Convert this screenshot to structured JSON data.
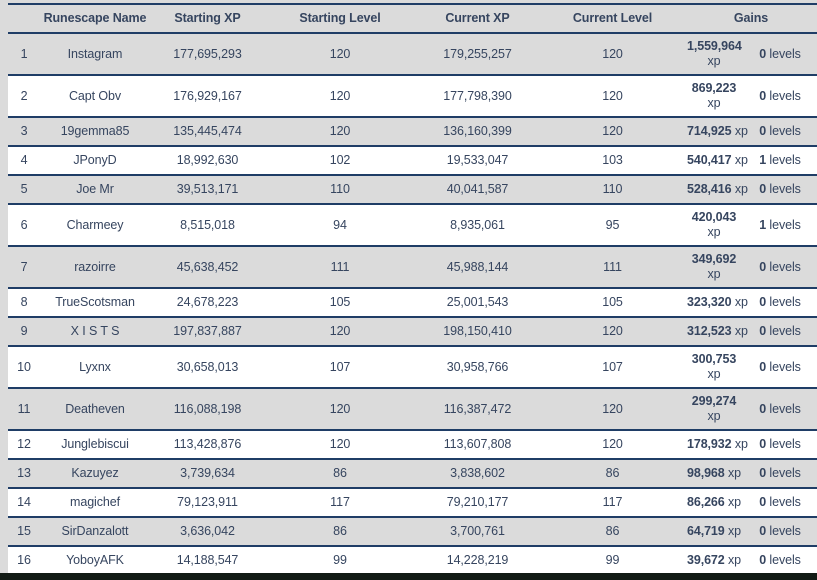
{
  "colors": {
    "page_background": "#dbdbdb",
    "row_alt_background": "#ffffff",
    "divider_navy": "#1f3d66",
    "text_navy": "#36455f",
    "bottom_bar": "#121b15"
  },
  "table": {
    "columns": [
      {
        "key": "rank",
        "label": ""
      },
      {
        "key": "name",
        "label": "Runescape Name"
      },
      {
        "key": "starting_xp",
        "label": "Starting XP"
      },
      {
        "key": "starting_level",
        "label": "Starting Level"
      },
      {
        "key": "current_xp",
        "label": "Current XP"
      },
      {
        "key": "current_level",
        "label": "Current Level"
      },
      {
        "key": "gains",
        "label": "Gains"
      }
    ],
    "rows": [
      {
        "rank": "1",
        "name": "Instagram",
        "starting_xp": "177,695,293",
        "starting_level": "120",
        "current_xp": "179,255,257",
        "current_level": "120",
        "gains_xp_value": "1,559,964",
        "gains_xp_unit": "xp",
        "gains_xp_wrap": true,
        "gains_levels_value": "0",
        "gains_levels_unit": "levels"
      },
      {
        "rank": "2",
        "name": "Capt Obv",
        "starting_xp": "176,929,167",
        "starting_level": "120",
        "current_xp": "177,798,390",
        "current_level": "120",
        "gains_xp_value": "869,223",
        "gains_xp_unit": "xp",
        "gains_xp_wrap": true,
        "gains_levels_value": "0",
        "gains_levels_unit": "levels"
      },
      {
        "rank": "3",
        "name": "19gemma85",
        "starting_xp": "135,445,474",
        "starting_level": "120",
        "current_xp": "136,160,399",
        "current_level": "120",
        "gains_xp_value": "714,925",
        "gains_xp_unit": "xp",
        "gains_xp_wrap": false,
        "gains_levels_value": "0",
        "gains_levels_unit": "levels"
      },
      {
        "rank": "4",
        "name": "JPonyD",
        "starting_xp": "18,992,630",
        "starting_level": "102",
        "current_xp": "19,533,047",
        "current_level": "103",
        "gains_xp_value": "540,417",
        "gains_xp_unit": "xp",
        "gains_xp_wrap": false,
        "gains_levels_value": "1",
        "gains_levels_unit": "levels"
      },
      {
        "rank": "5",
        "name": "Joe Mr",
        "starting_xp": "39,513,171",
        "starting_level": "110",
        "current_xp": "40,041,587",
        "current_level": "110",
        "gains_xp_value": "528,416",
        "gains_xp_unit": "xp",
        "gains_xp_wrap": false,
        "gains_levels_value": "0",
        "gains_levels_unit": "levels"
      },
      {
        "rank": "6",
        "name": "Charmeey",
        "starting_xp": "8,515,018",
        "starting_level": "94",
        "current_xp": "8,935,061",
        "current_level": "95",
        "gains_xp_value": "420,043",
        "gains_xp_unit": "xp",
        "gains_xp_wrap": true,
        "gains_levels_value": "1",
        "gains_levels_unit": "levels"
      },
      {
        "rank": "7",
        "name": "razoirre",
        "starting_xp": "45,638,452",
        "starting_level": "111",
        "current_xp": "45,988,144",
        "current_level": "111",
        "gains_xp_value": "349,692",
        "gains_xp_unit": "xp",
        "gains_xp_wrap": true,
        "gains_levels_value": "0",
        "gains_levels_unit": "levels"
      },
      {
        "rank": "8",
        "name": "TrueScotsman",
        "starting_xp": "24,678,223",
        "starting_level": "105",
        "current_xp": "25,001,543",
        "current_level": "105",
        "gains_xp_value": "323,320",
        "gains_xp_unit": "xp",
        "gains_xp_wrap": false,
        "gains_levels_value": "0",
        "gains_levels_unit": "levels"
      },
      {
        "rank": "9",
        "name": "X I S T S",
        "starting_xp": "197,837,887",
        "starting_level": "120",
        "current_xp": "198,150,410",
        "current_level": "120",
        "gains_xp_value": "312,523",
        "gains_xp_unit": "xp",
        "gains_xp_wrap": false,
        "gains_levels_value": "0",
        "gains_levels_unit": "levels"
      },
      {
        "rank": "10",
        "name": "Lyxnx",
        "starting_xp": "30,658,013",
        "starting_level": "107",
        "current_xp": "30,958,766",
        "current_level": "107",
        "gains_xp_value": "300,753",
        "gains_xp_unit": "xp",
        "gains_xp_wrap": true,
        "gains_levels_value": "0",
        "gains_levels_unit": "levels"
      },
      {
        "rank": "11",
        "name": "Deatheven",
        "starting_xp": "116,088,198",
        "starting_level": "120",
        "current_xp": "116,387,472",
        "current_level": "120",
        "gains_xp_value": "299,274",
        "gains_xp_unit": "xp",
        "gains_xp_wrap": true,
        "gains_levels_value": "0",
        "gains_levels_unit": "levels"
      },
      {
        "rank": "12",
        "name": "Junglebiscui",
        "starting_xp": "113,428,876",
        "starting_level": "120",
        "current_xp": "113,607,808",
        "current_level": "120",
        "gains_xp_value": "178,932",
        "gains_xp_unit": "xp",
        "gains_xp_wrap": false,
        "gains_levels_value": "0",
        "gains_levels_unit": "levels"
      },
      {
        "rank": "13",
        "name": "Kazuyez",
        "starting_xp": "3,739,634",
        "starting_level": "86",
        "current_xp": "3,838,602",
        "current_level": "86",
        "gains_xp_value": "98,968",
        "gains_xp_unit": "xp",
        "gains_xp_wrap": false,
        "gains_levels_value": "0",
        "gains_levels_unit": "levels"
      },
      {
        "rank": "14",
        "name": "magichef",
        "starting_xp": "79,123,911",
        "starting_level": "117",
        "current_xp": "79,210,177",
        "current_level": "117",
        "gains_xp_value": "86,266",
        "gains_xp_unit": "xp",
        "gains_xp_wrap": false,
        "gains_levels_value": "0",
        "gains_levels_unit": "levels"
      },
      {
        "rank": "15",
        "name": "SirDanzalott",
        "starting_xp": "3,636,042",
        "starting_level": "86",
        "current_xp": "3,700,761",
        "current_level": "86",
        "gains_xp_value": "64,719",
        "gains_xp_unit": "xp",
        "gains_xp_wrap": false,
        "gains_levels_value": "0",
        "gains_levels_unit": "levels"
      },
      {
        "rank": "16",
        "name": "YoboyAFK",
        "starting_xp": "14,188,547",
        "starting_level": "99",
        "current_xp": "14,228,219",
        "current_level": "99",
        "gains_xp_value": "39,672",
        "gains_xp_unit": "xp",
        "gains_xp_wrap": false,
        "gains_levels_value": "0",
        "gains_levels_unit": "levels"
      }
    ]
  }
}
